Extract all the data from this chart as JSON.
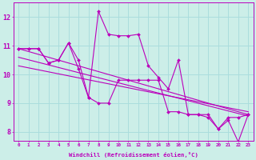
{
  "background_color": "#cceee8",
  "grid_color": "#aadddd",
  "line_color": "#bb00bb",
  "x_min": -0.5,
  "x_max": 23.5,
  "y_min": 7.7,
  "y_max": 12.5,
  "y_ticks": [
    8,
    9,
    10,
    11,
    12
  ],
  "x_ticks": [
    0,
    1,
    2,
    3,
    4,
    5,
    6,
    7,
    8,
    9,
    10,
    11,
    12,
    13,
    14,
    15,
    16,
    17,
    18,
    19,
    20,
    21,
    22,
    23
  ],
  "xlabel": "Windchill (Refroidissement éolien,°C)",
  "series1_x": [
    0,
    1,
    2,
    3,
    4,
    5,
    6,
    7,
    8,
    9,
    10,
    11,
    12,
    13,
    14,
    15,
    16,
    17,
    18,
    19,
    20,
    21,
    22,
    23
  ],
  "series1_y": [
    10.9,
    10.9,
    10.9,
    10.4,
    10.5,
    11.1,
    10.2,
    9.2,
    9.0,
    9.0,
    9.8,
    9.8,
    9.8,
    9.8,
    9.8,
    8.7,
    8.7,
    8.6,
    8.6,
    8.6,
    8.1,
    8.5,
    8.5,
    8.6
  ],
  "series2_x": [
    0,
    1,
    2,
    3,
    4,
    5,
    6,
    7,
    8,
    9,
    10,
    11,
    12,
    13,
    14,
    15,
    16,
    17,
    18,
    19,
    20,
    21,
    22,
    23
  ],
  "series2_y": [
    10.9,
    10.9,
    10.9,
    10.4,
    10.5,
    11.1,
    10.5,
    9.2,
    12.2,
    11.4,
    11.35,
    11.35,
    11.4,
    10.3,
    9.9,
    9.5,
    10.5,
    8.6,
    8.6,
    8.5,
    8.1,
    8.4,
    7.65,
    8.6
  ],
  "trend1_x": [
    0,
    23
  ],
  "trend1_y": [
    10.9,
    8.6
  ],
  "trend2_x": [
    0,
    23
  ],
  "trend2_y": [
    10.3,
    8.7
  ],
  "trend3_x": [
    0,
    23
  ],
  "trend3_y": [
    10.6,
    8.55
  ]
}
